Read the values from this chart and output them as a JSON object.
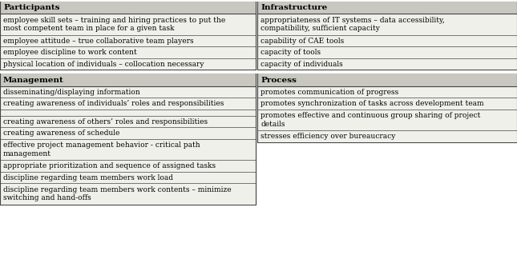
{
  "top_left": {
    "header": "Participants",
    "rows": [
      "employee skill sets – training and hiring practices to put the\nmost competent team in place for a given task",
      "employee attitude – true collaborative team players",
      "employee discipline to work content",
      "physical location of individuals – collocation necessary"
    ]
  },
  "bottom_left": {
    "header": "Management",
    "rows": [
      "disseminating/displaying information",
      "creating awareness of individuals’ roles and responsibilities",
      "",
      "creating awareness of others’ roles and responsibilities",
      "creating awareness of schedule",
      "effective project management behavior - critical path\nmanagement",
      "appropriate prioritization and sequence of assigned tasks",
      "discipline regarding team members work load",
      "discipline regarding team members work contents – minimize\nswitching and hand-offs"
    ]
  },
  "top_right": {
    "header": "Infrastructure",
    "rows": [
      "appropriateness of IT systems – data accessibility,\ncompatibility, sufficient capacity",
      "capability of CAE tools",
      "capacity of tools",
      "capacity of individuals"
    ]
  },
  "bottom_right": {
    "header": "Process",
    "rows": [
      "promotes communication of progress",
      "promotes synchronization of tasks across development team",
      "promotes effective and continuous group sharing of project\ndetails",
      "stresses efficiency over bureaucracy"
    ]
  },
  "bg_color": "#f0f0eb",
  "header_bg": "#c8c8c0",
  "border_color": "#444444",
  "font_size": 6.5,
  "header_font_size": 7.5,
  "fig_width": 6.45,
  "fig_height": 3.19,
  "dpi": 100
}
